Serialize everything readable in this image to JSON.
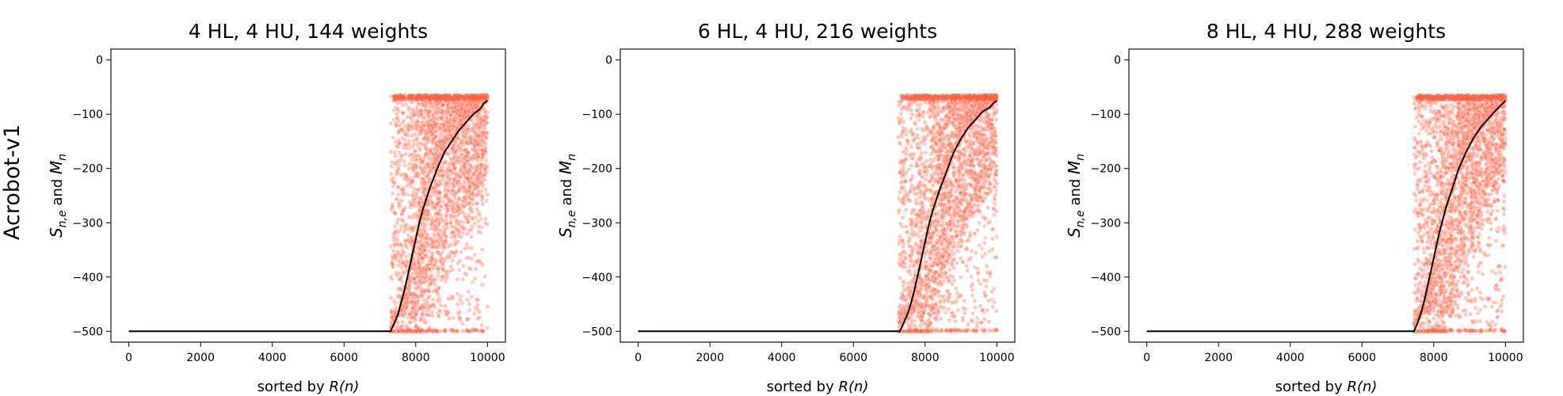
{
  "row_label": "Acrobot-v1",
  "chart_data": [
    {
      "type": "scatter",
      "title": "4 HL, 4 HU, 144 weights",
      "xlabel_prefix": "sorted by ",
      "xlabel_var": "R(n)",
      "ylabel": "S_{n,e} and M_n",
      "xlim": [
        -500,
        10500
      ],
      "ylim": [
        -520,
        20
      ],
      "xticks": [
        0,
        2000,
        4000,
        6000,
        8000,
        10000
      ],
      "yticks": [
        0,
        -100,
        -200,
        -300,
        -400,
        -500
      ],
      "series": [
        {
          "role": "scatter",
          "color": "#ff6347",
          "start_index": 7300,
          "n": 10000,
          "floor": -500,
          "ceiling": -65
        },
        {
          "role": "mean",
          "color": "#000000",
          "x": [
            0,
            7300,
            7400,
            7500,
            7600,
            7700,
            7800,
            7900,
            8000,
            8100,
            8200,
            8400,
            8600,
            8800,
            9000,
            9200,
            9400,
            9600,
            9800,
            9900,
            10000
          ],
          "y": [
            -500,
            -500,
            -485,
            -470,
            -445,
            -420,
            -390,
            -360,
            -330,
            -300,
            -275,
            -235,
            -200,
            -170,
            -150,
            -130,
            -115,
            -100,
            -90,
            -80,
            -75
          ]
        }
      ]
    },
    {
      "type": "scatter",
      "title": "6 HL, 4 HU, 216 weights",
      "xlabel_prefix": "sorted by ",
      "xlabel_var": "R(n)",
      "ylabel": "S_{n,e} and M_n",
      "xlim": [
        -500,
        10500
      ],
      "ylim": [
        -520,
        20
      ],
      "xticks": [
        0,
        2000,
        4000,
        6000,
        8000,
        10000
      ],
      "yticks": [
        0,
        -100,
        -200,
        -300,
        -400,
        -500
      ],
      "series": [
        {
          "role": "scatter",
          "color": "#ff6347",
          "start_index": 7250,
          "n": 10000,
          "floor": -500,
          "ceiling": -65
        },
        {
          "role": "mean",
          "color": "#000000",
          "x": [
            0,
            7300,
            7400,
            7500,
            7600,
            7700,
            7800,
            7900,
            8000,
            8100,
            8200,
            8400,
            8600,
            8800,
            9000,
            9200,
            9400,
            9600,
            9800,
            9900,
            10000
          ],
          "y": [
            -500,
            -500,
            -485,
            -470,
            -450,
            -425,
            -395,
            -365,
            -335,
            -305,
            -280,
            -240,
            -205,
            -170,
            -145,
            -125,
            -110,
            -95,
            -88,
            -80,
            -75
          ]
        }
      ]
    },
    {
      "type": "scatter",
      "title": "8 HL, 4 HU, 288 weights",
      "xlabel_prefix": "sorted by ",
      "xlabel_var": "R(n)",
      "ylabel": "S_{n,e} and M_n",
      "xlim": [
        -500,
        10500
      ],
      "ylim": [
        -520,
        20
      ],
      "xticks": [
        0,
        2000,
        4000,
        6000,
        8000,
        10000
      ],
      "yticks": [
        0,
        -100,
        -200,
        -300,
        -400,
        -500
      ],
      "series": [
        {
          "role": "scatter",
          "color": "#ff6347",
          "start_index": 7450,
          "n": 10000,
          "floor": -500,
          "ceiling": -65
        },
        {
          "role": "mean",
          "color": "#000000",
          "x": [
            0,
            7450,
            7550,
            7650,
            7750,
            7850,
            7950,
            8050,
            8150,
            8250,
            8350,
            8500,
            8700,
            8900,
            9100,
            9300,
            9500,
            9700,
            9850,
            10000
          ],
          "y": [
            -500,
            -500,
            -485,
            -465,
            -440,
            -410,
            -380,
            -350,
            -320,
            -295,
            -270,
            -240,
            -200,
            -170,
            -145,
            -125,
            -110,
            -95,
            -85,
            -75
          ]
        }
      ]
    }
  ]
}
